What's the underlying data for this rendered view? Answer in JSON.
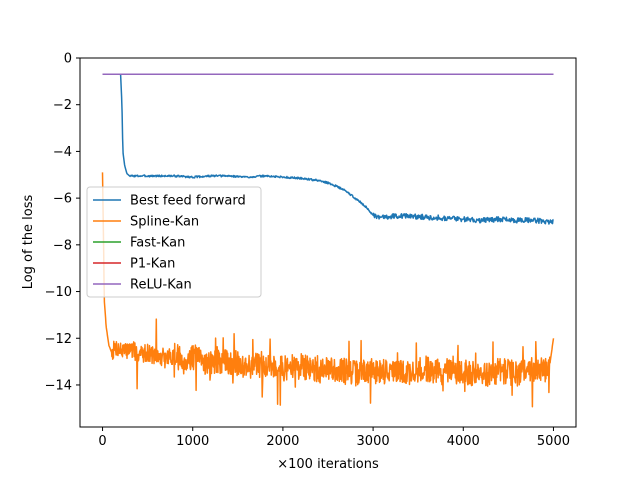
{
  "chart_data": {
    "type": "line",
    "title": "",
    "xlabel": "×100 iterations",
    "ylabel": "Log of the loss",
    "xlim": [
      -250,
      5250
    ],
    "ylim": [
      -15.8,
      0
    ],
    "xticks": [
      0,
      1000,
      2000,
      3000,
      4000,
      5000
    ],
    "yticks": [
      0,
      -2,
      -4,
      -6,
      -8,
      -10,
      -12,
      -14
    ],
    "legend_position": "center-left",
    "series": [
      {
        "name": "Best feed forward",
        "color": "#1f77b4",
        "x": [
          0,
          200,
          215,
          225,
          245,
          270,
          300,
          400,
          600,
          800,
          1000,
          1200,
          1400,
          1600,
          1800,
          2000,
          2200,
          2400,
          2500,
          2600,
          2700,
          2800,
          2900,
          2950,
          3000,
          3050,
          3100,
          3300,
          3500,
          3800,
          4000,
          4200,
          4400,
          4600,
          4800,
          4900,
          5000
        ],
        "y": [
          -0.7,
          -0.7,
          -2.0,
          -4.0,
          -4.6,
          -4.95,
          -5.05,
          -5.05,
          -5.05,
          -5.05,
          -5.1,
          -5.05,
          -5.05,
          -5.1,
          -5.05,
          -5.1,
          -5.15,
          -5.25,
          -5.35,
          -5.5,
          -5.7,
          -6.0,
          -6.3,
          -6.5,
          -6.75,
          -6.85,
          -6.8,
          -6.75,
          -6.8,
          -6.85,
          -6.9,
          -6.95,
          -6.9,
          -6.95,
          -6.95,
          -7.0,
          -7.0
        ]
      },
      {
        "name": "Spline-Kan",
        "color": "#ff7f0e",
        "x": [
          0,
          20,
          40,
          70,
          100,
          150,
          200,
          250,
          300,
          400,
          500,
          600,
          700,
          800,
          900,
          1000,
          1200,
          1400,
          1600,
          1800,
          2000,
          2200,
          2400,
          2600,
          2800,
          3000,
          3200,
          3400,
          3600,
          3800,
          4000,
          4200,
          4400,
          4600,
          4800,
          4950,
          5000
        ],
        "y": [
          -4.9,
          -10.4,
          -11.5,
          -12.3,
          -12.6,
          -12.4,
          -12.5,
          -12.6,
          -12.4,
          -12.7,
          -12.6,
          -12.8,
          -12.9,
          -12.7,
          -13.0,
          -12.8,
          -13.1,
          -13.0,
          -13.2,
          -13.1,
          -13.3,
          -13.2,
          -13.4,
          -13.3,
          -13.5,
          -13.4,
          -13.4,
          -13.5,
          -13.3,
          -13.5,
          -13.4,
          -13.6,
          -13.4,
          -13.5,
          -13.3,
          -13.4,
          -12.0
        ],
        "noise_amplitude": 0.55,
        "noise_samples": 1200,
        "noise_seed": 7
      },
      {
        "name": "Fast-Kan",
        "color": "#2ca02c",
        "x": [
          0,
          5000
        ],
        "y": [
          -0.7,
          -0.7
        ]
      },
      {
        "name": "P1-Kan",
        "color": "#d62728",
        "x": [
          0,
          5000
        ],
        "y": [
          -0.7,
          -0.7
        ]
      },
      {
        "name": "ReLU-Kan",
        "color": "#9467bd",
        "x": [
          0,
          5000
        ],
        "y": [
          -0.7,
          -0.7
        ]
      }
    ]
  }
}
